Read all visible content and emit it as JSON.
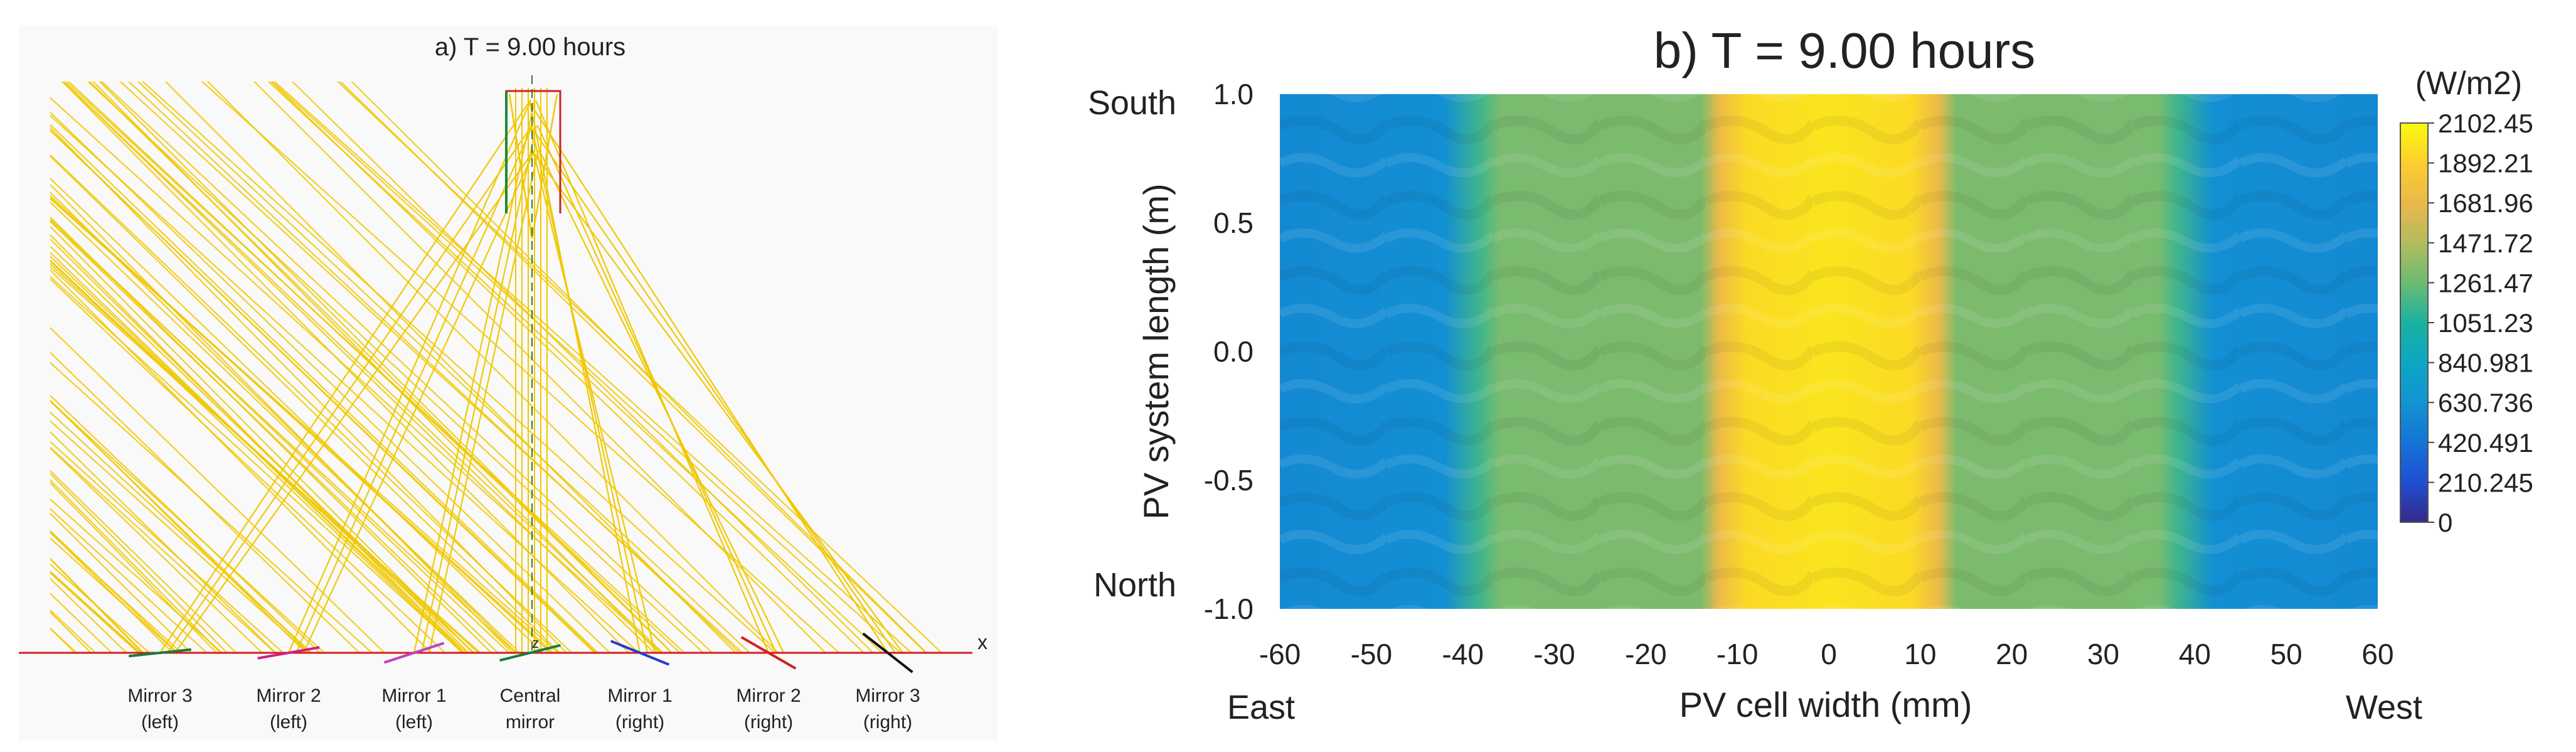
{
  "chart_data": [
    {
      "type": "diagram",
      "title": "a) T = 9.00 hours",
      "axis_labels": {
        "z": "z",
        "x": "x"
      },
      "mirrors": [
        {
          "name": "Mirror 3",
          "side": "(left)",
          "color": "#1a7a3a"
        },
        {
          "name": "Mirror 2",
          "side": "(left)",
          "color": "#d01c8b"
        },
        {
          "name": "Mirror 1",
          "side": "(left)",
          "color": "#c040c0"
        },
        {
          "name": "Central",
          "side": "mirror",
          "color": "#1a7a3a"
        },
        {
          "name": "Mirror 1",
          "side": "(right)",
          "color": "#2a3ad0"
        },
        {
          "name": "Mirror 2",
          "side": "(right)",
          "color": "#d02020"
        },
        {
          "name": "Mirror 3",
          "side": "(right)",
          "color": "#111111"
        }
      ],
      "ray_color": "#f0c800",
      "receiver_colors": {
        "frame": "#cc2222",
        "pv": "#1a8a3a"
      }
    },
    {
      "type": "heatmap",
      "title": "b) T = 9.00 hours",
      "xlabel": "PV cell width (mm)",
      "ylabel": "PV system length (m)",
      "xlim": [
        -60,
        60
      ],
      "ylim": [
        -1.0,
        1.0
      ],
      "xticks": [
        "-60",
        "-50",
        "-40",
        "-30",
        "-20",
        "-10",
        "0",
        "10",
        "20",
        "30",
        "40",
        "50",
        "60"
      ],
      "yticks": [
        "1.0",
        "0.5",
        "0.0",
        "-0.5",
        "-1.0"
      ],
      "direction_labels": {
        "left": "East",
        "right": "West",
        "top": "South",
        "bottom": "North"
      },
      "colorbar": {
        "unit": "(W/m2)",
        "ticks": [
          "2102.45",
          "1892.21",
          "1681.96",
          "1471.72",
          "1261.47",
          "1051.23",
          "840.981",
          "630.736",
          "420.491",
          "210.245",
          "0"
        ],
        "range": [
          0,
          2102.45
        ]
      },
      "profile": [
        {
          "x": -60,
          "value": 560
        },
        {
          "x": -42,
          "value": 600
        },
        {
          "x": -38,
          "value": 1150
        },
        {
          "x": -36,
          "value": 1300
        },
        {
          "x": -14,
          "value": 1310
        },
        {
          "x": -12,
          "value": 1700
        },
        {
          "x": -9,
          "value": 1950
        },
        {
          "x": 0,
          "value": 2000
        },
        {
          "x": 9,
          "value": 1950
        },
        {
          "x": 12,
          "value": 1700
        },
        {
          "x": 14,
          "value": 1310
        },
        {
          "x": 36,
          "value": 1300
        },
        {
          "x": 38,
          "value": 1150
        },
        {
          "x": 42,
          "value": 600
        },
        {
          "x": 60,
          "value": 560
        }
      ]
    }
  ]
}
